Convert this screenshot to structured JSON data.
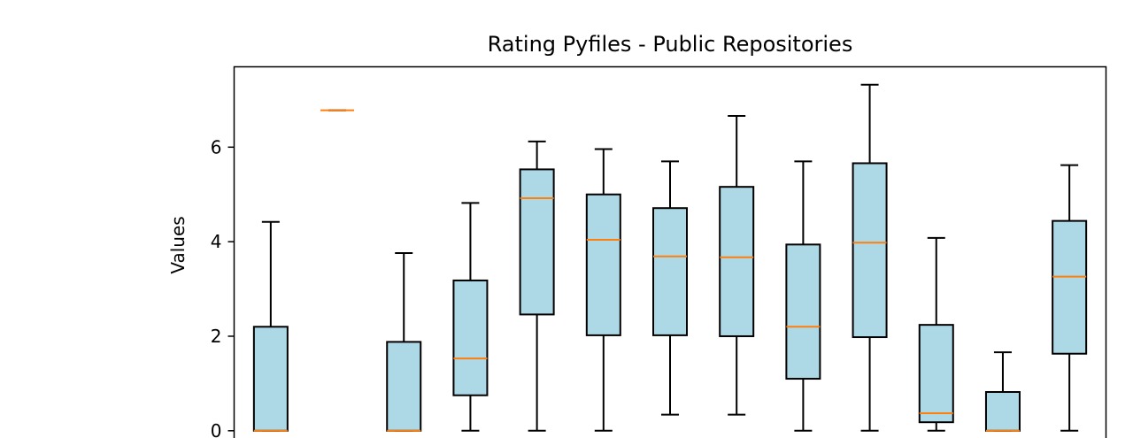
{
  "chart_data": {
    "type": "boxplot",
    "title": "Rating Pyfiles - Public Repositories",
    "xlabel": "",
    "ylabel": "Values",
    "ylim": [
      -0.35,
      7.7
    ],
    "yticks": [
      0,
      2,
      4,
      6
    ],
    "ytick_labels": [
      "0",
      "2",
      "4",
      "6"
    ],
    "grid": false,
    "box_color": "#add8e6",
    "median_color": "#ff7f0e",
    "boxes": [
      {
        "index": 1,
        "whislo": 0,
        "q1": 0,
        "med": 0,
        "q3": 2.2,
        "whishi": 4.42
      },
      {
        "index": 2,
        "whislo": 6.78,
        "q1": 6.78,
        "med": 6.78,
        "q3": 6.78,
        "whishi": 6.78
      },
      {
        "index": 3,
        "whislo": 0,
        "q1": 0,
        "med": 0,
        "q3": 1.88,
        "whishi": 3.76
      },
      {
        "index": 4,
        "whislo": 0,
        "q1": 0.75,
        "med": 1.53,
        "q3": 3.18,
        "whishi": 4.82
      },
      {
        "index": 5,
        "whislo": 0,
        "q1": 2.46,
        "med": 4.92,
        "q3": 5.53,
        "whishi": 6.12
      },
      {
        "index": 6,
        "whislo": 0,
        "q1": 2.02,
        "med": 4.04,
        "q3": 5.0,
        "whishi": 5.96
      },
      {
        "index": 7,
        "whislo": 0.34,
        "q1": 2.02,
        "med": 3.69,
        "q3": 4.71,
        "whishi": 5.7
      },
      {
        "index": 8,
        "whislo": 0.34,
        "q1": 2.0,
        "med": 3.67,
        "q3": 5.16,
        "whishi": 6.66
      },
      {
        "index": 9,
        "whislo": 0,
        "q1": 1.1,
        "med": 2.2,
        "q3": 3.94,
        "whishi": 5.7
      },
      {
        "index": 10,
        "whislo": 0,
        "q1": 1.98,
        "med": 3.98,
        "q3": 5.66,
        "whishi": 7.32
      },
      {
        "index": 11,
        "whislo": 0,
        "q1": 0.18,
        "med": 0.37,
        "q3": 2.24,
        "whishi": 4.08
      },
      {
        "index": 12,
        "whislo": 0,
        "q1": 0,
        "med": 0,
        "q3": 0.82,
        "whishi": 1.66
      },
      {
        "index": 13,
        "whislo": 0,
        "q1": 1.63,
        "med": 3.26,
        "q3": 4.44,
        "whishi": 5.62
      }
    ]
  }
}
